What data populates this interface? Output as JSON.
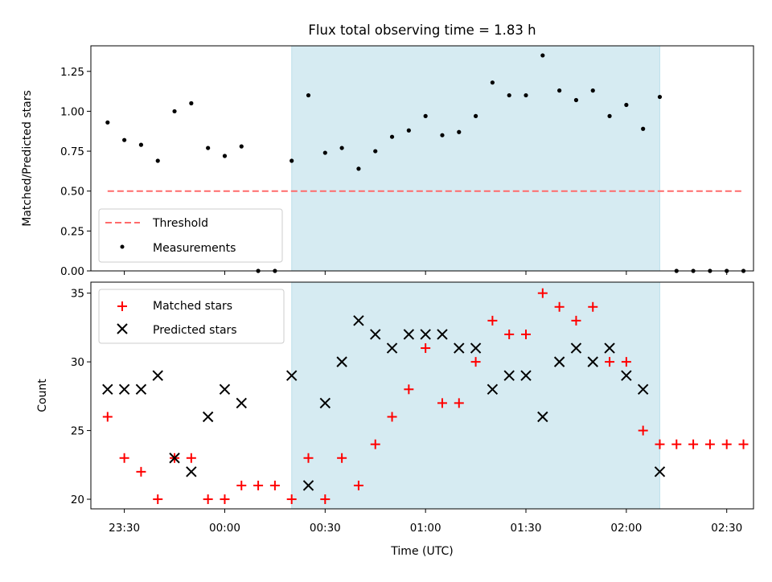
{
  "chart_data": {
    "type": "scatter",
    "title": "Flux total observing time = 1.83 h",
    "xlabel": "Time (UTC)",
    "x_ticks": [
      "23:30",
      "00:00",
      "00:30",
      "01:00",
      "01:30",
      "02:00",
      "02:30"
    ],
    "x_range": [
      "23:20",
      "02:38"
    ],
    "shaded_interval": {
      "start": "00:20",
      "end": "02:10",
      "color": "#add8e6"
    },
    "top_panel": {
      "ylabel": "Matched/Predicted stars",
      "ylim": [
        0,
        1.41
      ],
      "y_ticks": [
        "0.00",
        "0.25",
        "0.50",
        "0.75",
        "1.00",
        "1.25"
      ],
      "threshold": {
        "name": "Threshold",
        "value": 0.5,
        "x_start": "23:25",
        "x_end": "02:35",
        "color": "#ff6b6b"
      },
      "measurements": {
        "name": "Measurements",
        "color": "#000000",
        "x": [
          "23:25",
          "23:30",
          "23:35",
          "23:40",
          "23:45",
          "23:50",
          "23:55",
          "00:00",
          "00:05",
          "00:10",
          "00:15",
          "00:20",
          "00:25",
          "00:30",
          "00:35",
          "00:40",
          "00:45",
          "00:50",
          "00:55",
          "01:00",
          "01:05",
          "01:10",
          "01:15",
          "01:20",
          "01:25",
          "01:30",
          "01:35",
          "01:40",
          "01:45",
          "01:50",
          "01:55",
          "02:00",
          "02:05",
          "02:10",
          "02:15",
          "02:20",
          "02:25",
          "02:30",
          "02:35"
        ],
        "y": [
          0.93,
          0.82,
          0.79,
          0.69,
          1.0,
          1.05,
          0.77,
          0.72,
          0.78,
          0.0,
          0.0,
          0.69,
          1.1,
          0.74,
          0.77,
          0.64,
          0.75,
          0.84,
          0.88,
          0.97,
          0.85,
          0.87,
          0.97,
          1.18,
          1.1,
          1.1,
          1.35,
          1.13,
          1.07,
          1.13,
          0.97,
          1.04,
          0.89,
          1.09,
          0.0,
          0.0,
          0.0,
          0.0,
          0.0
        ]
      }
    },
    "bottom_panel": {
      "ylabel": "Count",
      "ylim": [
        19.3,
        35.8
      ],
      "y_ticks": [
        "20",
        "25",
        "30",
        "35"
      ],
      "series": [
        {
          "name": "Matched stars",
          "marker": "+",
          "color": "#ff0000",
          "x": [
            "23:25",
            "23:30",
            "23:35",
            "23:40",
            "23:45",
            "23:50",
            "23:55",
            "00:00",
            "00:05",
            "00:10",
            "00:15",
            "00:20",
            "00:25",
            "00:30",
            "00:35",
            "00:40",
            "00:45",
            "00:50",
            "00:55",
            "01:00",
            "01:05",
            "01:10",
            "01:15",
            "01:20",
            "01:25",
            "01:30",
            "01:35",
            "01:40",
            "01:45",
            "01:50",
            "01:55",
            "02:00",
            "02:05",
            "02:10",
            "02:15",
            "02:20",
            "02:25",
            "02:30",
            "02:35"
          ],
          "y": [
            26,
            23,
            22,
            20,
            23,
            23,
            20,
            20,
            21,
            21,
            21,
            20,
            23,
            20,
            23,
            21,
            24,
            26,
            28,
            31,
            27,
            27,
            30,
            33,
            32,
            32,
            35,
            34,
            33,
            34,
            30,
            30,
            25,
            24,
            24,
            24,
            24,
            24,
            24
          ]
        },
        {
          "name": "Predicted stars",
          "marker": "x",
          "color": "#000000",
          "x": [
            "23:25",
            "23:30",
            "23:35",
            "23:40",
            "23:45",
            "23:50",
            "23:55",
            "00:00",
            "00:05",
            "00:20",
            "00:25",
            "00:30",
            "00:35",
            "00:40",
            "00:45",
            "00:50",
            "00:55",
            "01:00",
            "01:05",
            "01:10",
            "01:15",
            "01:20",
            "01:25",
            "01:30",
            "01:35",
            "01:40",
            "01:45",
            "01:50",
            "01:55",
            "02:00",
            "02:05",
            "02:10"
          ],
          "y": [
            28,
            28,
            28,
            29,
            23,
            22,
            26,
            28,
            27,
            29,
            21,
            27,
            30,
            33,
            32,
            31,
            32,
            32,
            32,
            31,
            31,
            28,
            29,
            29,
            26,
            30,
            31,
            30,
            31,
            29,
            28,
            22
          ]
        }
      ]
    },
    "legend_top": "lower-left",
    "legend_bottom": "upper-left",
    "grid": false
  }
}
